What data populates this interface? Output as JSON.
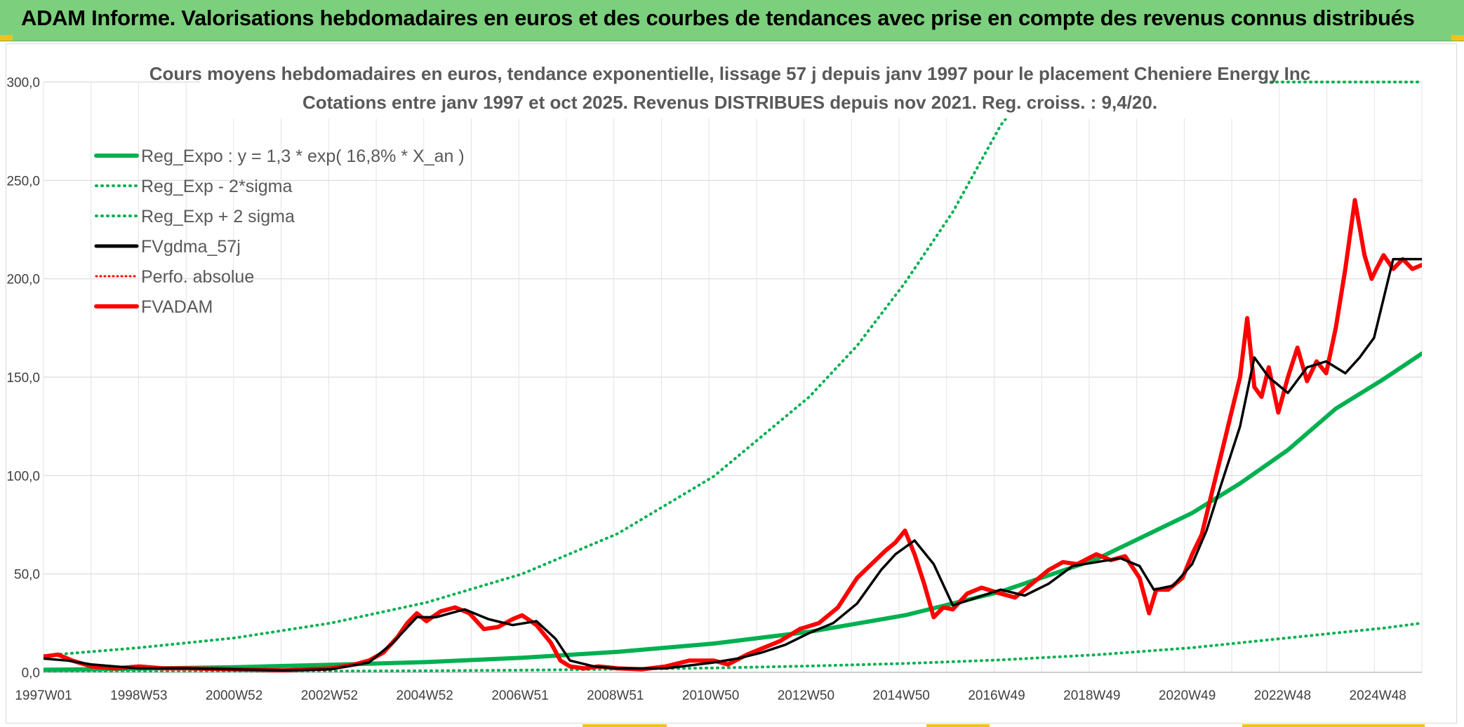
{
  "header": {
    "title": "ADAM Informe. Valorisations hebdomadaires en euros et des courbes de tendances avec prise en compte des revenus connus distribués"
  },
  "colors": {
    "header_bg": "#7ccf7c",
    "trend_green": "#00b050",
    "smoothed_black": "#000000",
    "fvadam_red": "#ff0000",
    "accent_yellow": "#f3c21a"
  },
  "chart_data": {
    "type": "line",
    "title": "Cours moyens hebdomadaires en euros, tendance exponentielle, lissage 57 j depuis janv 1997 pour le placement Cheniere Energy Inc",
    "subtitle": "Cotations entre janv 1997 et oct 2025. Revenus DISTRIBUES depuis nov 2021. Reg. croiss. : 9,4/20.",
    "xlabel": "",
    "ylabel": "",
    "ylim": [
      0,
      300
    ],
    "yticks": [
      "0,0",
      "50,0",
      "100,0",
      "150,0",
      "200,0",
      "250,0",
      "300,0"
    ],
    "xticks": [
      "1997W01",
      "1998W53",
      "2000W52",
      "2002W52",
      "2004W52",
      "2006W51",
      "2008W51",
      "2010W50",
      "2012W50",
      "2014W50",
      "2016W49",
      "2018W49",
      "2020W49",
      "2022W48",
      "2024W48"
    ],
    "xlim_years": [
      1997.0,
      2025.8
    ],
    "grid": true,
    "legend_position": "top-left",
    "legend": [
      "Reg_Expo : y = 1,3 * exp( 16,8% *  X_an )",
      "Reg_Exp - 2*sigma",
      "Reg_Exp + 2 sigma",
      "FVgdma_57j",
      "Perfo. absolue",
      "FVADAM"
    ],
    "series": [
      {
        "name": "Reg_Expo : y = 1,3 * exp( 16,8% *  X_an )",
        "style": "solid-thick",
        "x": [
          1997,
          1999,
          2001,
          2003,
          2005,
          2007,
          2009,
          2011,
          2013,
          2015,
          2017,
          2019,
          2021,
          2022,
          2023,
          2024,
          2025,
          2025.8
        ],
        "values": [
          1.3,
          1.9,
          2.6,
          3.8,
          5.2,
          7.4,
          10.4,
          14.6,
          20.6,
          29.0,
          41.0,
          57.5,
          81.0,
          96.0,
          113.0,
          134.0,
          149.0,
          162.0
        ]
      },
      {
        "name": "Reg_Exp - 2*sigma",
        "style": "dotted",
        "x": [
          1997,
          1999,
          2001,
          2003,
          2005,
          2007,
          2009,
          2011,
          2013,
          2015,
          2017,
          2019,
          2021,
          2023,
          2025,
          2025.8
        ],
        "values": [
          0.2,
          0.3,
          0.4,
          0.6,
          0.8,
          1.1,
          1.6,
          2.2,
          3.2,
          4.5,
          6.3,
          8.9,
          12.5,
          17.5,
          22.5,
          25.0
        ]
      },
      {
        "name": "Reg_Exp + 2 sigma",
        "style": "dotted",
        "x": [
          1997,
          1999,
          2001,
          2003,
          2005,
          2007,
          2009,
          2011,
          2013,
          2014,
          2015,
          2016,
          2017,
          2017.7
        ],
        "values": [
          8.5,
          12.5,
          17.5,
          25.0,
          35.5,
          50.0,
          70.5,
          99.5,
          140.0,
          166.0,
          198.0,
          234.0,
          278.0,
          300.0
        ]
      },
      {
        "name": "FVgdma_57j",
        "style": "solid",
        "x": [
          1997,
          1997.5,
          1998,
          1998.5,
          1999,
          2000,
          2001,
          2002,
          2003,
          2003.8,
          2004.3,
          2004.8,
          2005.2,
          2005.8,
          2006.3,
          2006.8,
          2007.3,
          2007.7,
          2008.0,
          2008.5,
          2009,
          2010,
          2011,
          2011.5,
          2012,
          2012.5,
          2013,
          2013.5,
          2014,
          2014.5,
          2014.8,
          2015.2,
          2015.6,
          2016,
          2016.5,
          2017,
          2017.5,
          2018,
          2018.5,
          2019,
          2019.5,
          2019.9,
          2020.2,
          2020.6,
          2021,
          2021.3,
          2021.6,
          2022,
          2022.3,
          2022.6,
          2023,
          2023.4,
          2023.8,
          2024.2,
          2024.5,
          2024.8,
          2025.2,
          2025.8
        ],
        "values": [
          7,
          6,
          4,
          3,
          2,
          2,
          1.5,
          1,
          1.5,
          5,
          15,
          28,
          28,
          32,
          27,
          24,
          26,
          17,
          6,
          3,
          2,
          2,
          5,
          7,
          10,
          14,
          20,
          25,
          35,
          52,
          60,
          67,
          55,
          34,
          38,
          42,
          39,
          45,
          54,
          56,
          58,
          54,
          42,
          44,
          55,
          72,
          95,
          125,
          160,
          150,
          142,
          155,
          158,
          152,
          160,
          170,
          210,
          210
        ]
      },
      {
        "name": "FVADAM",
        "style": "solid-thick",
        "x": [
          1997,
          1997.3,
          1997.6,
          1998,
          1998.5,
          1999,
          1999.5,
          2000,
          2001,
          2002,
          2003,
          2003.5,
          2003.8,
          2004.1,
          2004.4,
          2004.6,
          2004.8,
          2005.0,
          2005.3,
          2005.6,
          2005.9,
          2006.2,
          2006.5,
          2006.8,
          2007.0,
          2007.3,
          2007.6,
          2007.8,
          2008.0,
          2008.3,
          2008.6,
          2009,
          2009.5,
          2010,
          2010.5,
          2011,
          2011.3,
          2011.7,
          2012,
          2012.4,
          2012.8,
          2013.2,
          2013.6,
          2014.0,
          2014.3,
          2014.6,
          2014.8,
          2015.0,
          2015.2,
          2015.4,
          2015.6,
          2015.8,
          2016.0,
          2016.3,
          2016.6,
          2017.0,
          2017.3,
          2017.6,
          2018.0,
          2018.3,
          2018.6,
          2019.0,
          2019.3,
          2019.6,
          2019.9,
          2020.1,
          2020.25,
          2020.5,
          2020.8,
          2021.0,
          2021.2,
          2021.4,
          2021.6,
          2021.8,
          2022.0,
          2022.15,
          2022.3,
          2022.45,
          2022.6,
          2022.8,
          2023.0,
          2023.2,
          2023.4,
          2023.6,
          2023.8,
          2024.0,
          2024.2,
          2024.4,
          2024.6,
          2024.75,
          2024.85,
          2025.0,
          2025.2,
          2025.4,
          2025.6,
          2025.8
        ],
        "values": [
          8,
          9,
          6,
          3,
          2,
          3,
          2,
          2,
          1.5,
          1,
          2,
          4,
          6,
          10,
          18,
          25,
          30,
          26,
          31,
          33,
          30,
          22,
          23,
          27,
          29,
          24,
          15,
          6,
          3,
          2,
          3,
          2,
          1.5,
          3,
          6,
          6,
          4,
          9,
          12,
          16,
          22,
          25,
          33,
          48,
          55,
          62,
          66,
          72,
          60,
          45,
          28,
          33,
          32,
          40,
          43,
          40,
          38,
          44,
          52,
          56,
          55,
          60,
          57,
          59,
          48,
          30,
          42,
          42,
          48,
          60,
          70,
          90,
          110,
          130,
          150,
          180,
          145,
          140,
          155,
          132,
          150,
          165,
          148,
          158,
          152,
          175,
          205,
          240,
          212,
          200,
          205,
          212,
          205,
          210,
          205,
          207
        ]
      }
    ]
  }
}
